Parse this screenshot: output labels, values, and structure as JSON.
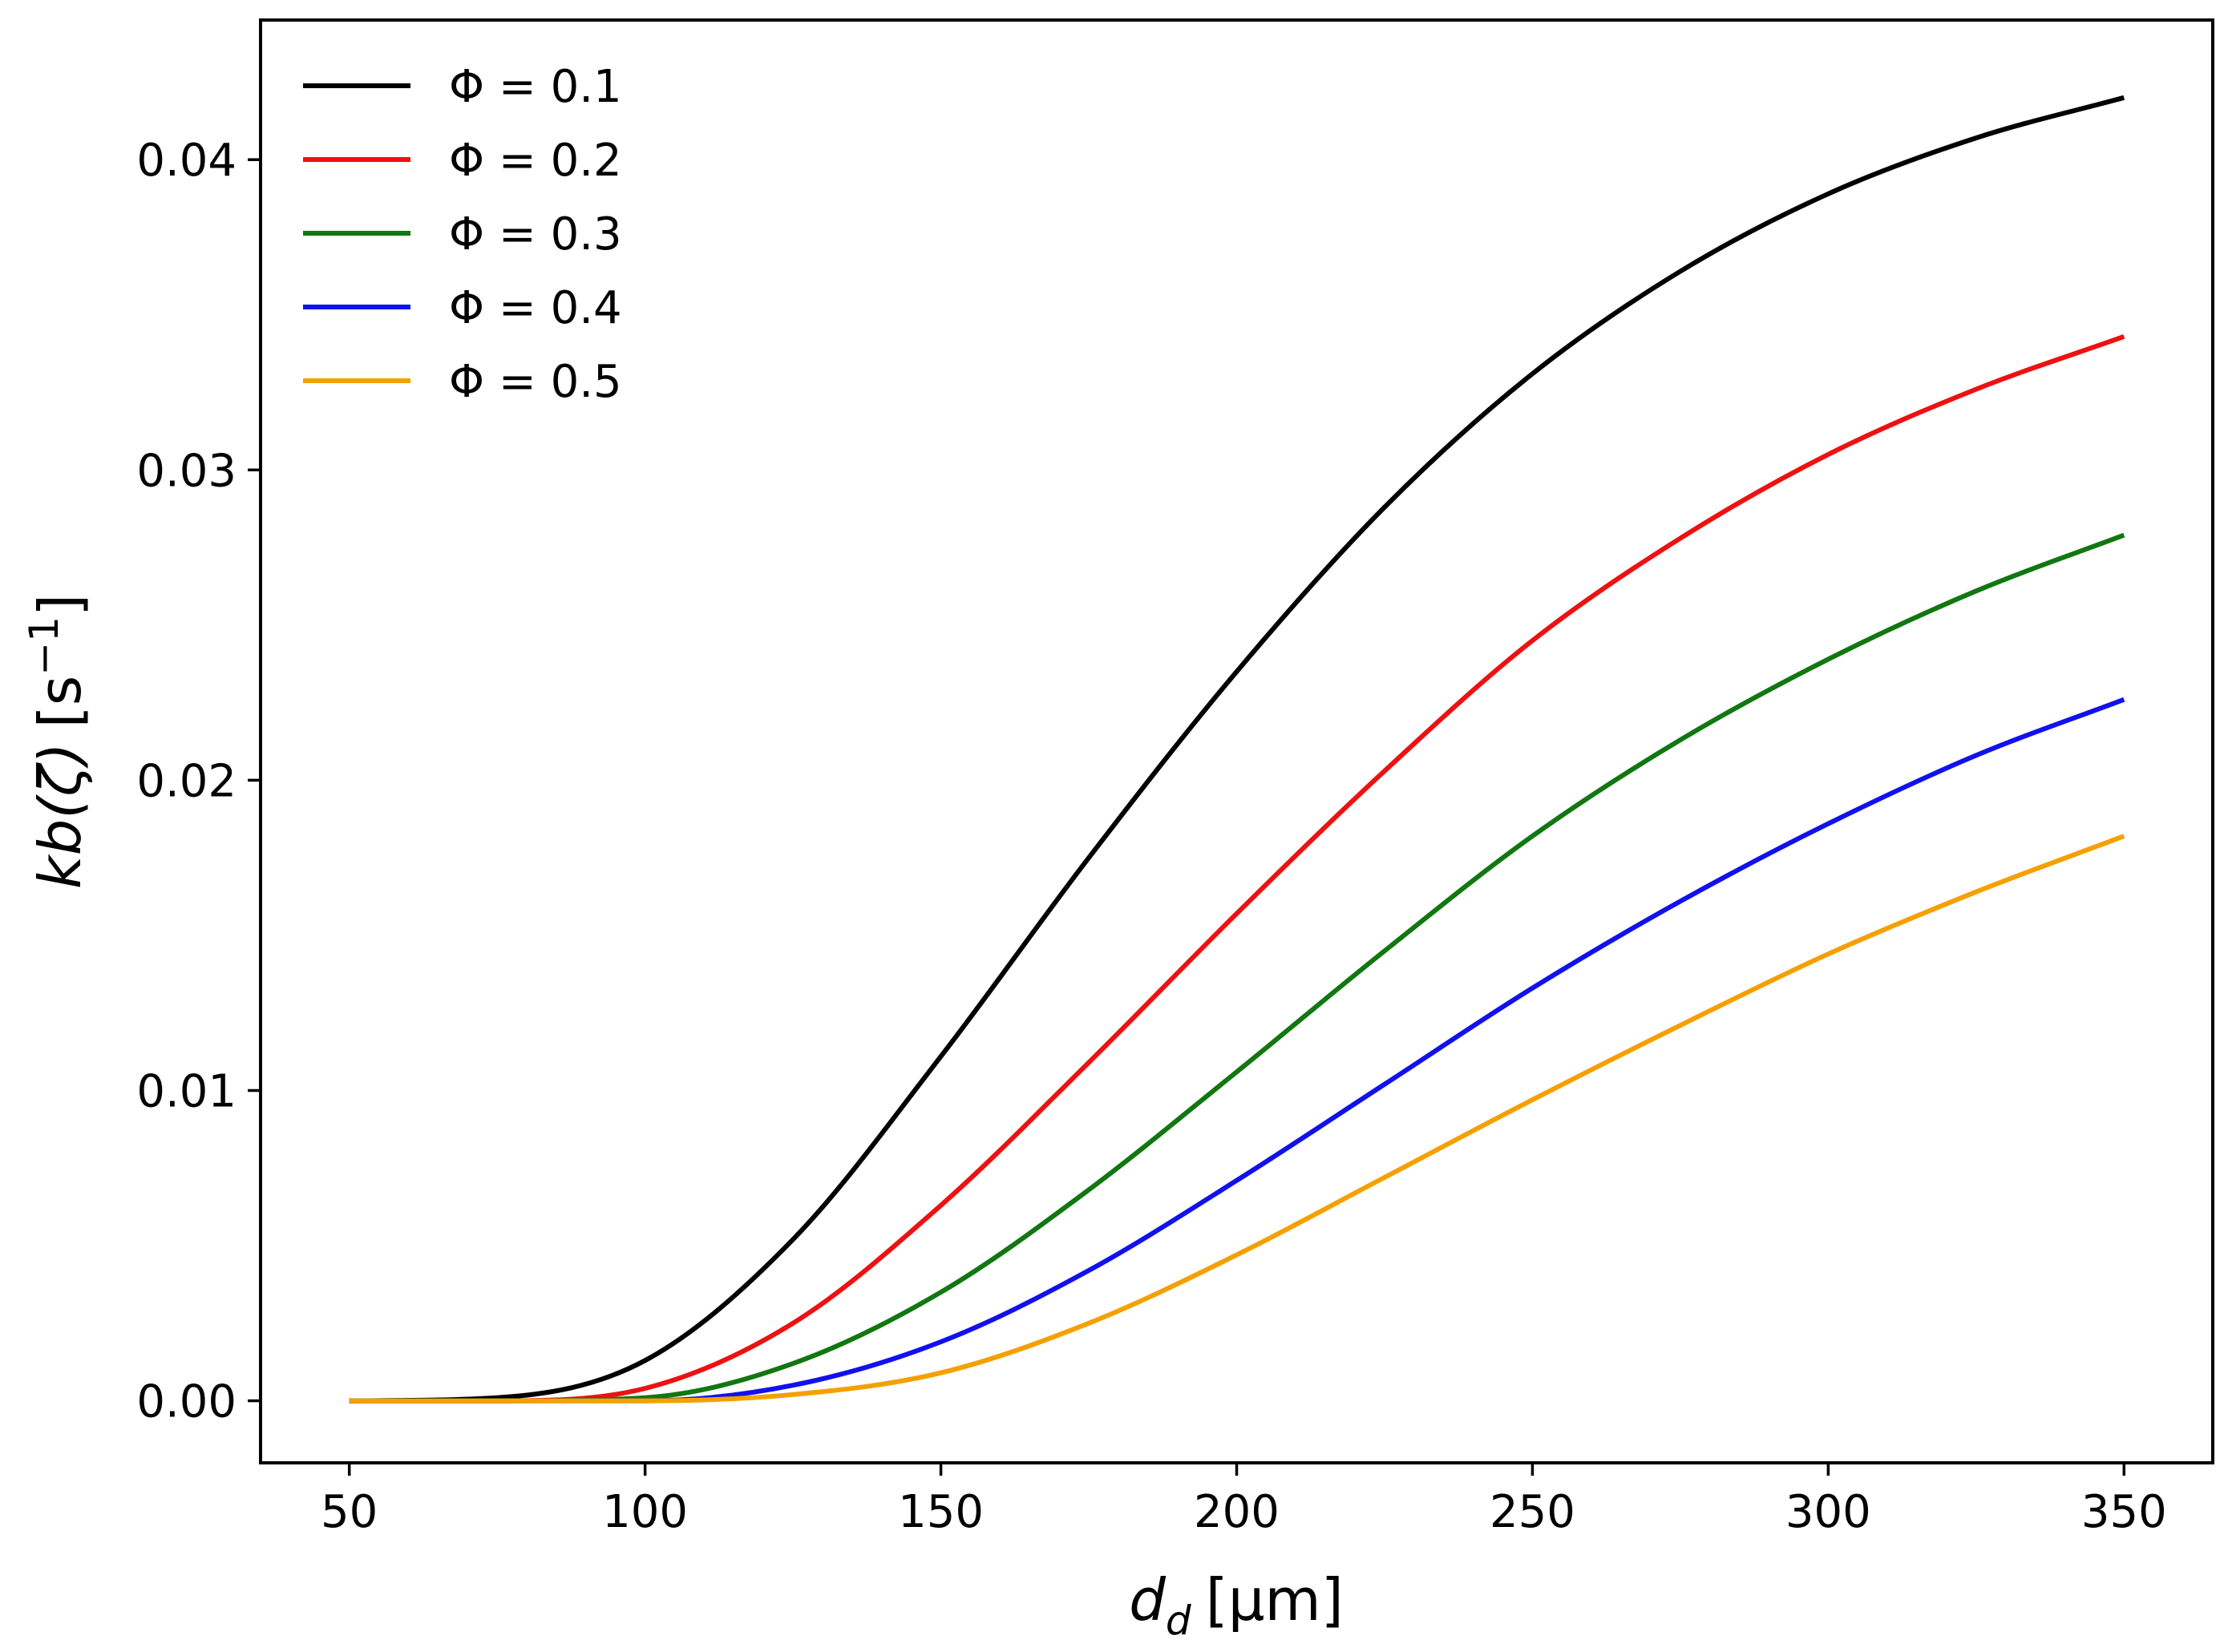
{
  "chart_data": {
    "type": "line",
    "title": "",
    "xlabel_main": "d",
    "xlabel_sub": "d",
    "xlabel_unit": "[μm]",
    "ylabel_main": "kb(ζ)",
    "ylabel_unit_base": "[s",
    "ylabel_unit_exp": "−1",
    "ylabel_unit_close": "]",
    "xlim": [
      35,
      365
    ],
    "ylim": [
      -0.002,
      0.0445
    ],
    "xticks": [
      50,
      100,
      150,
      200,
      250,
      300,
      350
    ],
    "xtick_labels": [
      "50",
      "100",
      "150",
      "200",
      "250",
      "300",
      "350"
    ],
    "yticks": [
      0.0,
      0.01,
      0.02,
      0.03,
      0.04
    ],
    "ytick_labels": [
      "0.00",
      "0.01",
      "0.02",
      "0.03",
      "0.04"
    ],
    "grid": false,
    "legend_position": "top-left",
    "x": [
      50,
      75,
      100,
      125,
      150,
      175,
      200,
      225,
      250,
      275,
      300,
      325,
      350
    ],
    "series": [
      {
        "name": "Φ = 0.1",
        "color": "#000000",
        "values": [
          0.0,
          0.0001,
          0.0013,
          0.0052,
          0.0111,
          0.0175,
          0.0235,
          0.0288,
          0.0331,
          0.0364,
          0.0389,
          0.0407,
          0.042
        ]
      },
      {
        "name": "Φ = 0.2",
        "color": "#ee1111",
        "values": [
          0.0,
          0.0,
          0.0004,
          0.0025,
          0.0063,
          0.0109,
          0.0157,
          0.0203,
          0.0245,
          0.0278,
          0.0305,
          0.0326,
          0.0343
        ]
      },
      {
        "name": "Φ = 0.3",
        "color": "#117711",
        "values": [
          0.0,
          0.0,
          0.0001,
          0.0012,
          0.0035,
          0.0068,
          0.0106,
          0.0145,
          0.0182,
          0.0213,
          0.0239,
          0.0261,
          0.0279
        ]
      },
      {
        "name": "Φ = 0.4",
        "color": "#1111ee",
        "values": [
          0.0,
          0.0,
          0.0,
          0.0005,
          0.0019,
          0.0042,
          0.0071,
          0.0102,
          0.0133,
          0.0161,
          0.0186,
          0.0208,
          0.0226
        ]
      },
      {
        "name": "Φ = 0.5",
        "color": "#f5a000",
        "values": [
          0.0,
          0.0,
          0.0,
          0.0002,
          0.0009,
          0.0025,
          0.0047,
          0.0072,
          0.0097,
          0.0121,
          0.0144,
          0.0164,
          0.0182
        ]
      }
    ]
  }
}
